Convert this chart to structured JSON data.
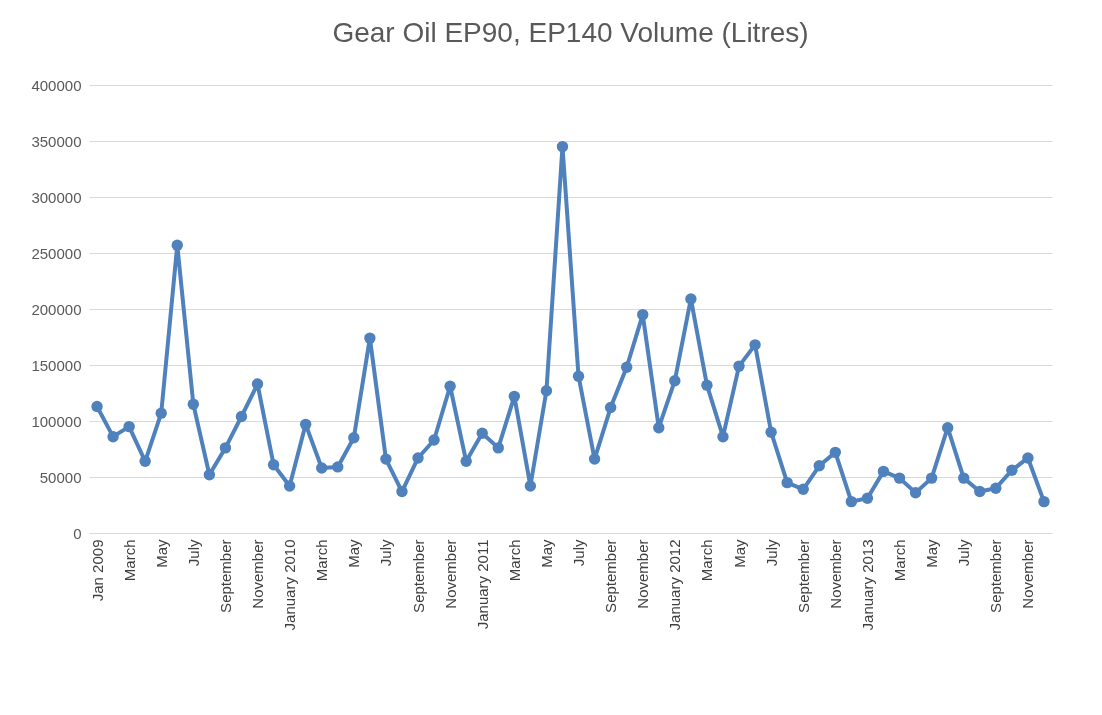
{
  "chart_data": {
    "type": "line",
    "title": "Gear Oil EP90, EP140 Volume (Litres)",
    "categories": [
      "Jan 2009",
      null,
      "March",
      null,
      "May",
      null,
      "July",
      null,
      "September",
      null,
      "November",
      null,
      "January 2010",
      null,
      "March",
      null,
      "May",
      null,
      "July",
      null,
      "September",
      null,
      "November",
      null,
      "January 2011",
      null,
      "March",
      null,
      "May",
      null,
      "July",
      null,
      "September",
      null,
      "November",
      null,
      "January 2012",
      null,
      "March",
      null,
      "May",
      null,
      "July",
      null,
      "September",
      null,
      "November",
      null,
      "January 2013",
      null,
      "March",
      null,
      "May",
      null,
      "July",
      null,
      "September",
      null,
      "November",
      null
    ],
    "series": [
      {
        "color": "#4f81bd",
        "values": [
          113000,
          86000,
          95000,
          64000,
          107000,
          257000,
          115000,
          52000,
          76000,
          104000,
          133000,
          61000,
          42000,
          97000,
          58000,
          59000,
          85000,
          174000,
          66000,
          37000,
          67000,
          83000,
          131000,
          64000,
          89000,
          76000,
          122000,
          42000,
          127000,
          345000,
          140000,
          66000,
          112000,
          148000,
          195000,
          94000,
          136000,
          209000,
          132000,
          86000,
          149000,
          168000,
          90000,
          45000,
          39000,
          60000,
          72000,
          28000,
          31000,
          55000,
          49000,
          36000,
          49000,
          94000,
          49000,
          37000,
          40000,
          56000,
          67000,
          28000
        ]
      }
    ],
    "ylim": [
      0,
      400000
    ],
    "yticks": [
      0,
      50000,
      100000,
      150000,
      200000,
      250000,
      300000,
      350000,
      400000
    ],
    "grid": "y",
    "marker": "circle",
    "line_style": "solid"
  }
}
